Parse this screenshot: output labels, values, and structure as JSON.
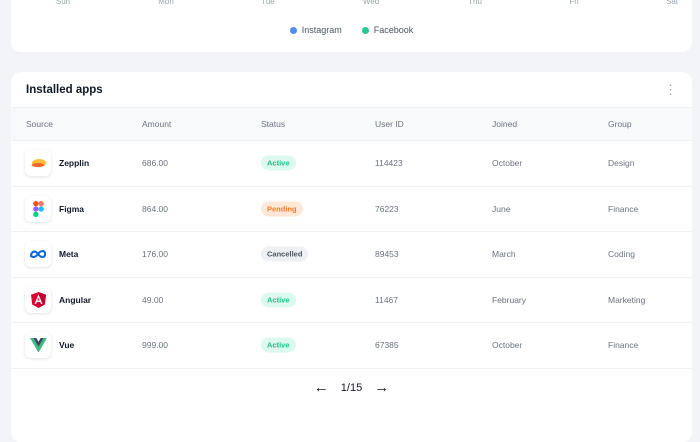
{
  "chart": {
    "days": [
      "Sun",
      "Mon",
      "Tue",
      "Wed",
      "Thu",
      "Fri",
      "Sat"
    ],
    "legend": [
      {
        "label": "Instagram",
        "color": "#4f8ef7"
      },
      {
        "label": "Facebook",
        "color": "#22c993"
      }
    ]
  },
  "apps": {
    "title": "Installed apps",
    "columns": [
      "Source",
      "Amount",
      "Status",
      "User ID",
      "Joined",
      "Group"
    ],
    "rows": [
      {
        "source": "Zepplin",
        "icon": "zeplin-logo-icon",
        "amount": "686.00",
        "status": "Active",
        "user_id": "114423",
        "joined": "October",
        "group": "Design"
      },
      {
        "source": "Figma",
        "icon": "figma-logo-icon",
        "amount": "864.00",
        "status": "Pending",
        "user_id": "76223",
        "joined": "June",
        "group": "Finance"
      },
      {
        "source": "Meta",
        "icon": "meta-logo-icon",
        "amount": "176.00",
        "status": "Cancelled",
        "user_id": "89453",
        "joined": "March",
        "group": "Coding"
      },
      {
        "source": "Angular",
        "icon": "angular-logo-icon",
        "amount": "49.00",
        "status": "Active",
        "user_id": "11467",
        "joined": "February",
        "group": "Marketing"
      },
      {
        "source": "Vue",
        "icon": "vue-logo-icon",
        "amount": "999.00",
        "status": "Active",
        "user_id": "67385",
        "joined": "October",
        "group": "Finance"
      }
    ],
    "status_colors": {
      "Active": {
        "bg": "#dcfaf0",
        "fg": "#1fbf85"
      },
      "Pending": {
        "bg": "#ffe8d6",
        "fg": "#f57c2b"
      },
      "Cancelled": {
        "bg": "#eef0f4",
        "fg": "#4b5563"
      }
    },
    "pagination": "1/15"
  }
}
